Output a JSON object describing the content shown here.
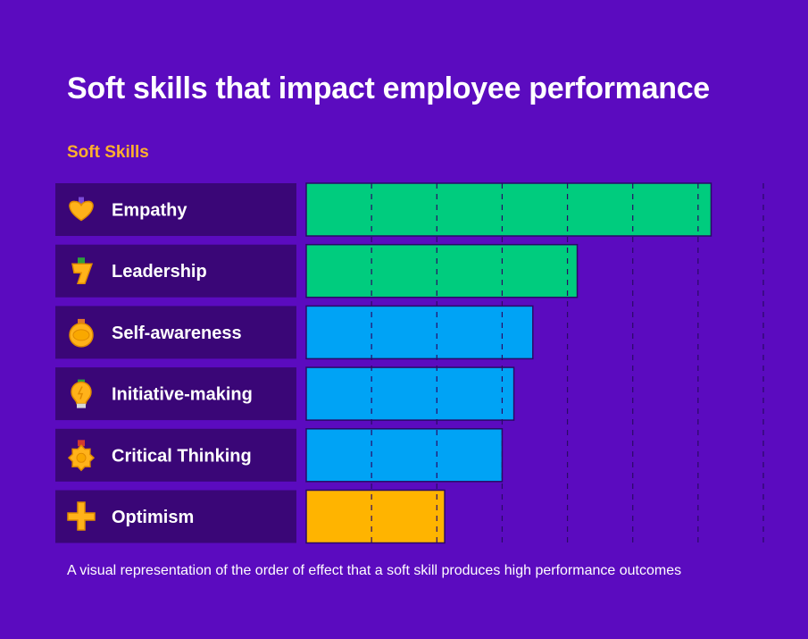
{
  "header": {
    "title": "Soft skills that impact employee performance",
    "subtitle": "Soft Skills"
  },
  "footer": {
    "caption": "A visual representation of the order of effect that a soft skill produces high performance outcomes"
  },
  "chart_data": {
    "type": "bar",
    "orientation": "horizontal",
    "categories": [
      "Empathy",
      "Leadership",
      "Self-awareness",
      "Initiative-making",
      "Critical Thinking",
      "Optimism"
    ],
    "values": [
      6.2,
      4.15,
      3.47,
      3.18,
      3.0,
      2.12
    ],
    "xlim": [
      0,
      7
    ],
    "grid": true,
    "colors": [
      "#00cc7e",
      "#00cc7e",
      "#00a3f5",
      "#00a3f5",
      "#00a3f5",
      "#ffb400"
    ],
    "icons": [
      "heart-medal-icon",
      "lightning-medal-icon",
      "gold-medal-icon",
      "lightbulb-icon",
      "gear-medal-icon",
      "plus-medal-icon"
    ],
    "label_panel_color": "#3a0677"
  }
}
